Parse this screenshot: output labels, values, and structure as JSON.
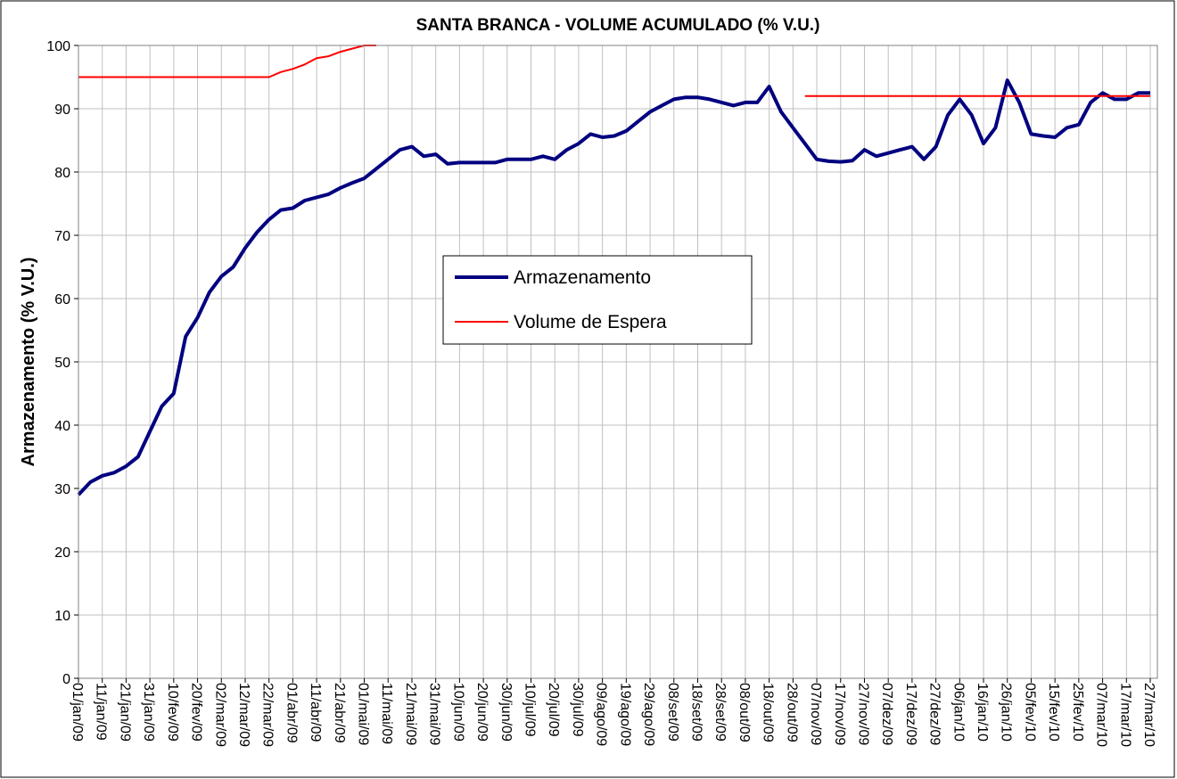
{
  "chart_data": {
    "type": "line",
    "title": "SANTA BRANCA - VOLUME ACUMULADO (% V.U.)",
    "y_label": "Armazenamento (% V.U.)",
    "categories": [
      "01/jan/09",
      null,
      "11/jan/09",
      null,
      "21/jan/09",
      null,
      "31/jan/09",
      null,
      "10/fev/09",
      null,
      "20/fev/09",
      null,
      "02/mar/09",
      null,
      "12/mar/09",
      null,
      "22/mar/09",
      null,
      "01/abr/09",
      null,
      "11/abr/09",
      null,
      "21/abr/09",
      null,
      "01/mai/09",
      null,
      "11/mai/09",
      null,
      "21/mai/09",
      null,
      "31/mai/09",
      null,
      "10/jun/09",
      null,
      "20/jun/09",
      null,
      "30/jun/09",
      null,
      "10/jul/09",
      null,
      "20/jul/09",
      null,
      "30/jul/09",
      null,
      "09/ago/09",
      null,
      "19/ago/09",
      null,
      "29/ago/09",
      null,
      "08/set/09",
      null,
      "18/set/09",
      null,
      "28/set/09",
      null,
      "08/out/09",
      null,
      "18/out/09",
      null,
      "28/out/09",
      null,
      "07/nov/09",
      null,
      "17/nov/09",
      null,
      "27/nov/09",
      null,
      "07/dez/09",
      null,
      "17/dez/09",
      null,
      "27/dez/09",
      null,
      "06/jan/10",
      null,
      "16/jan/10",
      null,
      "26/jan/10",
      null,
      "05/fev/10",
      null,
      "15/fev/10",
      null,
      "25/fev/10",
      null,
      "07/mar/10",
      null,
      "17/mar/10",
      null,
      "27/mar/10"
    ],
    "series": [
      {
        "name": "Armazenamento",
        "color": "#000080",
        "width": 4,
        "values": [
          29,
          31,
          32,
          32.5,
          33.5,
          35,
          39,
          43,
          45,
          54,
          57,
          61,
          63.5,
          65,
          68,
          70.5,
          72.5,
          74,
          74.3,
          75.5,
          76,
          76.5,
          77.5,
          78.3,
          79,
          80.5,
          82,
          83.5,
          84,
          82.5,
          82.8,
          81.3,
          81.5,
          81.5,
          81.5,
          81.5,
          82,
          82,
          82,
          82.5,
          82,
          83.5,
          84.5,
          86,
          85.5,
          85.7,
          86.5,
          88,
          89.5,
          90.5,
          91.5,
          91.8,
          91.8,
          91.5,
          91,
          90.5,
          91,
          91,
          93.5,
          89.5,
          87,
          84.5,
          82,
          81.7,
          81.6,
          81.8,
          83.5,
          82.5,
          83,
          83.5,
          84,
          82,
          84,
          89,
          91.5,
          89,
          84.5,
          87,
          94.5,
          91,
          86,
          85.7,
          85.5,
          87,
          87.5,
          91,
          92.5,
          91.5,
          91.5,
          92.5,
          92.5
        ]
      },
      {
        "name": "Volume de Espera",
        "color": "#ff0000",
        "width": 2,
        "values": [
          95,
          95,
          95,
          95,
          95,
          95,
          95,
          95,
          95,
          95,
          95,
          95,
          95,
          95,
          95,
          95,
          95,
          95.8,
          96.3,
          97,
          98,
          98.3,
          99,
          99.5,
          100,
          100,
          null,
          null,
          null,
          null,
          null,
          null,
          null,
          null,
          null,
          null,
          null,
          null,
          null,
          null,
          null,
          null,
          null,
          null,
          null,
          null,
          null,
          null,
          null,
          null,
          null,
          null,
          null,
          null,
          null,
          null,
          null,
          null,
          null,
          null,
          null,
          92,
          92,
          92,
          92,
          92,
          92,
          92,
          92,
          92,
          92,
          92,
          92,
          92,
          92,
          92,
          92,
          92,
          92,
          92,
          92,
          92,
          92,
          92,
          92,
          92,
          92,
          92,
          92,
          92,
          92
        ]
      }
    ],
    "ylim": [
      0,
      100
    ],
    "yticks": [
      0,
      10,
      20,
      30,
      40,
      50,
      60,
      70,
      80,
      90,
      100
    ],
    "grid": true
  }
}
